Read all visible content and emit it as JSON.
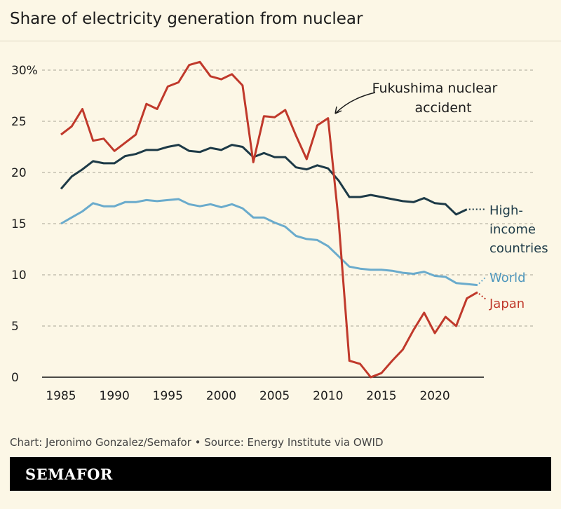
{
  "chart_data": {
    "type": "line",
    "title": "Share of electricity generation from nuclear",
    "xlim": [
      1985,
      2024
    ],
    "ylim": [
      0,
      30
    ],
    "x_ticks": [
      "1985",
      "1990",
      "1995",
      "2000",
      "2005",
      "2010",
      "2015",
      "2020"
    ],
    "y_ticks": [
      "0",
      "5",
      "10",
      "15",
      "20",
      "25",
      "30%"
    ],
    "grid": true,
    "x": [
      1985,
      1986,
      1987,
      1988,
      1989,
      1990,
      1991,
      1992,
      1993,
      1994,
      1995,
      1996,
      1997,
      1998,
      1999,
      2000,
      2001,
      2002,
      2003,
      2004,
      2005,
      2006,
      2007,
      2008,
      2009,
      2010,
      2011,
      2012,
      2013,
      2014,
      2015,
      2016,
      2017,
      2018,
      2019,
      2020,
      2021,
      2022,
      2023,
      2024
    ],
    "series": [
      {
        "name": "High-income countries",
        "color": "#1d3a47",
        "values": [
          18.4,
          19.6,
          20.3,
          21.1,
          20.9,
          20.9,
          21.6,
          21.8,
          22.2,
          22.2,
          22.5,
          22.7,
          22.1,
          22.0,
          22.4,
          22.2,
          22.7,
          22.5,
          21.5,
          21.9,
          21.5,
          21.5,
          20.5,
          20.3,
          20.7,
          20.4,
          19.2,
          17.6,
          17.6,
          17.8,
          17.6,
          17.4,
          17.2,
          17.1,
          17.5,
          17.0,
          16.9,
          15.9,
          16.4,
          null
        ]
      },
      {
        "name": "World",
        "color": "#6aabcc",
        "values": [
          15.0,
          15.6,
          16.2,
          17.0,
          16.7,
          16.7,
          17.1,
          17.1,
          17.3,
          17.2,
          17.3,
          17.4,
          16.9,
          16.7,
          16.9,
          16.6,
          16.9,
          16.5,
          15.6,
          15.6,
          15.1,
          14.7,
          13.8,
          13.5,
          13.4,
          12.8,
          11.8,
          10.8,
          10.6,
          10.5,
          10.5,
          10.4,
          10.2,
          10.1,
          10.3,
          9.9,
          9.8,
          9.2,
          9.1,
          9.0
        ]
      },
      {
        "name": "Japan",
        "color": "#c0392b",
        "values": [
          23.7,
          24.5,
          26.2,
          23.1,
          23.3,
          22.1,
          22.9,
          23.7,
          26.7,
          26.2,
          28.4,
          28.8,
          30.5,
          30.8,
          29.4,
          29.1,
          29.6,
          28.5,
          21.0,
          25.5,
          25.4,
          26.1,
          23.6,
          21.3,
          24.6,
          25.3,
          15.2,
          1.6,
          1.3,
          0.0,
          0.4,
          1.6,
          2.7,
          4.6,
          6.3,
          4.3,
          5.9,
          5.0,
          7.7,
          8.3
        ]
      }
    ],
    "labels": {
      "high_income_1": "High-",
      "high_income_2": "income",
      "high_income_3": "countries",
      "world": "World",
      "japan": "Japan"
    },
    "annotation": {
      "line1": "Fukushima nuclear",
      "line2": "accident",
      "year": 2011
    }
  },
  "footer": {
    "credit": "Chart: Jeronimo Gonzalez/Semafor • Source: Energy Institute via OWID"
  },
  "brand": {
    "logo": "SEMAFOR"
  }
}
